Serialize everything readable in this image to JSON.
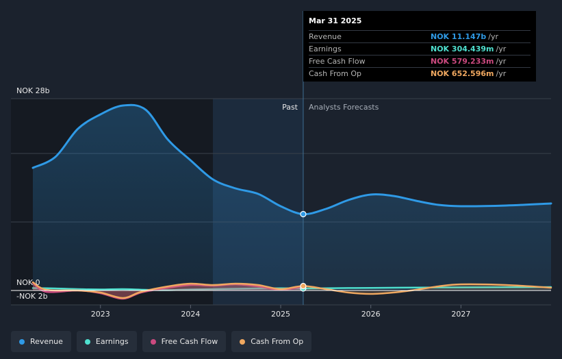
{
  "chart_data": {
    "type": "line",
    "currency": "NOK",
    "y_top_label": "NOK 28b",
    "y_zero_label": "NOK 0",
    "y_bottom_label": "-NOK 2b",
    "ylim": [
      -2,
      28
    ],
    "xlim": [
      2022.25,
      2028.0
    ],
    "x_ticks": [
      {
        "value": 2023,
        "label": "2023"
      },
      {
        "value": 2024,
        "label": "2024"
      },
      {
        "value": 2025,
        "label": "2025"
      },
      {
        "value": 2026,
        "label": "2026"
      },
      {
        "value": 2027,
        "label": "2027"
      }
    ],
    "past_label": "Past",
    "forecast_label": "Analysts Forecasts",
    "divider_x": 2025.25,
    "shade_start_x": 2024.25,
    "colors": {
      "revenue": "#2f9ae6",
      "earnings": "#4fe0cf",
      "free_cash_flow": "#cc4a80",
      "cash_from_op": "#f0a860"
    },
    "series": [
      {
        "key": "revenue",
        "name": "Revenue",
        "points": [
          [
            2022.25,
            17.9
          ],
          [
            2022.5,
            19.5
          ],
          [
            2022.75,
            23.6
          ],
          [
            2023.0,
            25.7
          ],
          [
            2023.25,
            27.0
          ],
          [
            2023.5,
            26.4
          ],
          [
            2023.75,
            22.0
          ],
          [
            2024.0,
            19.0
          ],
          [
            2024.25,
            16.2
          ],
          [
            2024.5,
            14.9
          ],
          [
            2024.75,
            14.1
          ],
          [
            2025.0,
            12.3
          ],
          [
            2025.25,
            11.147
          ],
          [
            2025.5,
            11.9
          ],
          [
            2025.75,
            13.2
          ],
          [
            2026.0,
            14.0
          ],
          [
            2026.25,
            13.8
          ],
          [
            2026.5,
            13.1
          ],
          [
            2026.75,
            12.5
          ],
          [
            2027.0,
            12.3
          ],
          [
            2027.5,
            12.4
          ],
          [
            2028.0,
            12.7
          ]
        ]
      },
      {
        "key": "earnings",
        "name": "Earnings",
        "points": [
          [
            2022.25,
            0.35
          ],
          [
            2022.5,
            0.3
          ],
          [
            2022.75,
            0.2
          ],
          [
            2023.0,
            0.15
          ],
          [
            2023.25,
            0.2
          ],
          [
            2023.5,
            0.1
          ],
          [
            2023.75,
            0.05
          ],
          [
            2024.0,
            0.15
          ],
          [
            2024.25,
            0.2
          ],
          [
            2024.5,
            0.25
          ],
          [
            2024.75,
            0.3
          ],
          [
            2025.0,
            0.32
          ],
          [
            2025.25,
            0.304
          ],
          [
            2025.5,
            0.33
          ],
          [
            2025.75,
            0.36
          ],
          [
            2026.0,
            0.38
          ],
          [
            2026.5,
            0.42
          ],
          [
            2027.0,
            0.45
          ],
          [
            2027.5,
            0.47
          ],
          [
            2028.0,
            0.5
          ]
        ]
      },
      {
        "key": "free_cash_flow",
        "name": "Free Cash Flow",
        "points": [
          [
            2022.25,
            1.1
          ],
          [
            2022.4,
            -0.2
          ],
          [
            2022.75,
            0.0
          ],
          [
            2023.0,
            -0.4
          ],
          [
            2023.25,
            -1.2
          ],
          [
            2023.45,
            -0.3
          ],
          [
            2023.75,
            0.4
          ],
          [
            2024.0,
            0.8
          ],
          [
            2024.25,
            0.7
          ],
          [
            2024.5,
            0.9
          ],
          [
            2024.75,
            0.6
          ],
          [
            2025.0,
            0.1
          ],
          [
            2025.25,
            0.579
          ]
        ]
      },
      {
        "key": "cash_from_op",
        "name": "Cash From Op",
        "points": [
          [
            2022.25,
            1.2
          ],
          [
            2022.4,
            0.1
          ],
          [
            2022.75,
            0.0
          ],
          [
            2023.0,
            -0.3
          ],
          [
            2023.25,
            -1.1
          ],
          [
            2023.45,
            -0.2
          ],
          [
            2023.75,
            0.6
          ],
          [
            2024.0,
            1.0
          ],
          [
            2024.25,
            0.8
          ],
          [
            2024.5,
            1.0
          ],
          [
            2024.75,
            0.8
          ],
          [
            2025.0,
            0.2
          ],
          [
            2025.25,
            0.653
          ],
          [
            2025.5,
            0.2
          ],
          [
            2025.75,
            -0.3
          ],
          [
            2026.0,
            -0.5
          ],
          [
            2026.25,
            -0.3
          ],
          [
            2026.5,
            0.1
          ],
          [
            2026.75,
            0.6
          ],
          [
            2027.0,
            0.9
          ],
          [
            2027.5,
            0.8
          ],
          [
            2028.0,
            0.4
          ]
        ]
      }
    ]
  },
  "tooltip": {
    "date": "Mar 31 2025",
    "rows": [
      {
        "label": "Revenue",
        "value": "NOK 11.147b",
        "unit": "/yr",
        "color": "#2f9ae6"
      },
      {
        "label": "Earnings",
        "value": "NOK 304.439m",
        "unit": "/yr",
        "color": "#4fe0cf"
      },
      {
        "label": "Free Cash Flow",
        "value": "NOK 579.233m",
        "unit": "/yr",
        "color": "#cc4a80"
      },
      {
        "label": "Cash From Op",
        "value": "NOK 652.596m",
        "unit": "/yr",
        "color": "#f0a860"
      }
    ]
  },
  "legend": [
    {
      "label": "Revenue",
      "color": "#2f9ae6"
    },
    {
      "label": "Earnings",
      "color": "#4fe0cf"
    },
    {
      "label": "Free Cash Flow",
      "color": "#cc4a80"
    },
    {
      "label": "Cash From Op",
      "color": "#f0a860"
    }
  ]
}
